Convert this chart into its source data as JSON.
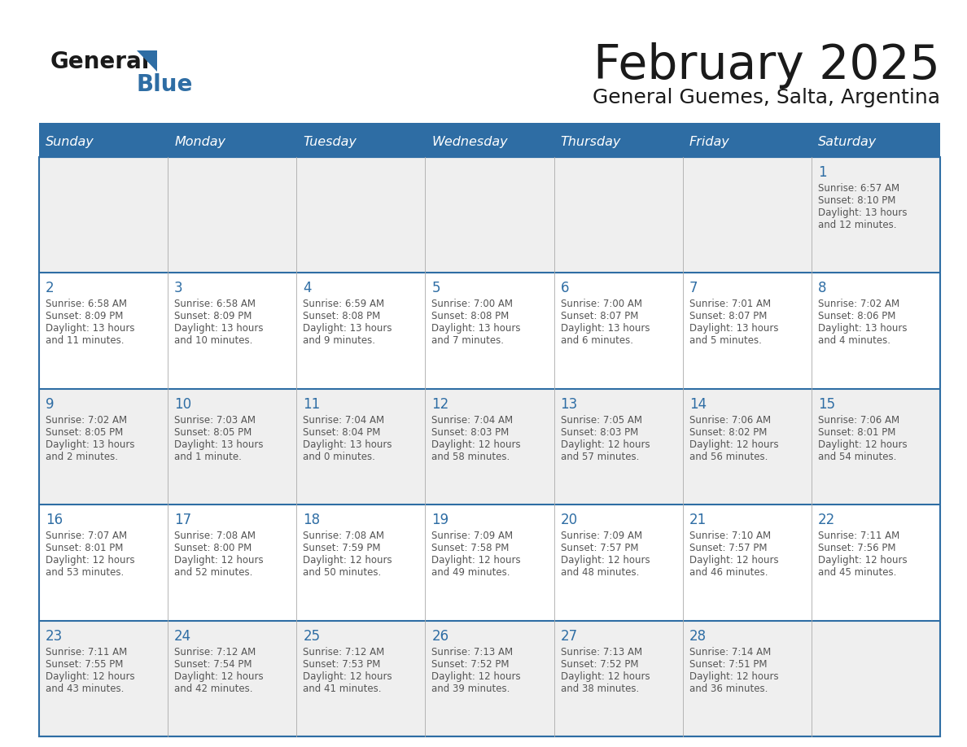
{
  "title": "February 2025",
  "subtitle": "General Guemes, Salta, Argentina",
  "header_bg": "#2E6DA4",
  "header_text": "#FFFFFF",
  "cell_bg_odd": "#EFEFEF",
  "cell_bg_even": "#FFFFFF",
  "border_color": "#2E6DA4",
  "day_num_color": "#2E6DA4",
  "text_color": "#555555",
  "days_of_week": [
    "Sunday",
    "Monday",
    "Tuesday",
    "Wednesday",
    "Thursday",
    "Friday",
    "Saturday"
  ],
  "calendar_data": [
    [
      null,
      null,
      null,
      null,
      null,
      null,
      {
        "day": 1,
        "sunrise": "6:57 AM",
        "sunset": "8:10 PM",
        "daylight": "13 hours",
        "daylight2": "and 12 minutes."
      }
    ],
    [
      {
        "day": 2,
        "sunrise": "6:58 AM",
        "sunset": "8:09 PM",
        "daylight": "13 hours",
        "daylight2": "and 11 minutes."
      },
      {
        "day": 3,
        "sunrise": "6:58 AM",
        "sunset": "8:09 PM",
        "daylight": "13 hours",
        "daylight2": "and 10 minutes."
      },
      {
        "day": 4,
        "sunrise": "6:59 AM",
        "sunset": "8:08 PM",
        "daylight": "13 hours",
        "daylight2": "and 9 minutes."
      },
      {
        "day": 5,
        "sunrise": "7:00 AM",
        "sunset": "8:08 PM",
        "daylight": "13 hours",
        "daylight2": "and 7 minutes."
      },
      {
        "day": 6,
        "sunrise": "7:00 AM",
        "sunset": "8:07 PM",
        "daylight": "13 hours",
        "daylight2": "and 6 minutes."
      },
      {
        "day": 7,
        "sunrise": "7:01 AM",
        "sunset": "8:07 PM",
        "daylight": "13 hours",
        "daylight2": "and 5 minutes."
      },
      {
        "day": 8,
        "sunrise": "7:02 AM",
        "sunset": "8:06 PM",
        "daylight": "13 hours",
        "daylight2": "and 4 minutes."
      }
    ],
    [
      {
        "day": 9,
        "sunrise": "7:02 AM",
        "sunset": "8:05 PM",
        "daylight": "13 hours",
        "daylight2": "and 2 minutes."
      },
      {
        "day": 10,
        "sunrise": "7:03 AM",
        "sunset": "8:05 PM",
        "daylight": "13 hours",
        "daylight2": "and 1 minute."
      },
      {
        "day": 11,
        "sunrise": "7:04 AM",
        "sunset": "8:04 PM",
        "daylight": "13 hours",
        "daylight2": "and 0 minutes."
      },
      {
        "day": 12,
        "sunrise": "7:04 AM",
        "sunset": "8:03 PM",
        "daylight": "12 hours",
        "daylight2": "and 58 minutes."
      },
      {
        "day": 13,
        "sunrise": "7:05 AM",
        "sunset": "8:03 PM",
        "daylight": "12 hours",
        "daylight2": "and 57 minutes."
      },
      {
        "day": 14,
        "sunrise": "7:06 AM",
        "sunset": "8:02 PM",
        "daylight": "12 hours",
        "daylight2": "and 56 minutes."
      },
      {
        "day": 15,
        "sunrise": "7:06 AM",
        "sunset": "8:01 PM",
        "daylight": "12 hours",
        "daylight2": "and 54 minutes."
      }
    ],
    [
      {
        "day": 16,
        "sunrise": "7:07 AM",
        "sunset": "8:01 PM",
        "daylight": "12 hours",
        "daylight2": "and 53 minutes."
      },
      {
        "day": 17,
        "sunrise": "7:08 AM",
        "sunset": "8:00 PM",
        "daylight": "12 hours",
        "daylight2": "and 52 minutes."
      },
      {
        "day": 18,
        "sunrise": "7:08 AM",
        "sunset": "7:59 PM",
        "daylight": "12 hours",
        "daylight2": "and 50 minutes."
      },
      {
        "day": 19,
        "sunrise": "7:09 AM",
        "sunset": "7:58 PM",
        "daylight": "12 hours",
        "daylight2": "and 49 minutes."
      },
      {
        "day": 20,
        "sunrise": "7:09 AM",
        "sunset": "7:57 PM",
        "daylight": "12 hours",
        "daylight2": "and 48 minutes."
      },
      {
        "day": 21,
        "sunrise": "7:10 AM",
        "sunset": "7:57 PM",
        "daylight": "12 hours",
        "daylight2": "and 46 minutes."
      },
      {
        "day": 22,
        "sunrise": "7:11 AM",
        "sunset": "7:56 PM",
        "daylight": "12 hours",
        "daylight2": "and 45 minutes."
      }
    ],
    [
      {
        "day": 23,
        "sunrise": "7:11 AM",
        "sunset": "7:55 PM",
        "daylight": "12 hours",
        "daylight2": "and 43 minutes."
      },
      {
        "day": 24,
        "sunrise": "7:12 AM",
        "sunset": "7:54 PM",
        "daylight": "12 hours",
        "daylight2": "and 42 minutes."
      },
      {
        "day": 25,
        "sunrise": "7:12 AM",
        "sunset": "7:53 PM",
        "daylight": "12 hours",
        "daylight2": "and 41 minutes."
      },
      {
        "day": 26,
        "sunrise": "7:13 AM",
        "sunset": "7:52 PM",
        "daylight": "12 hours",
        "daylight2": "and 39 minutes."
      },
      {
        "day": 27,
        "sunrise": "7:13 AM",
        "sunset": "7:52 PM",
        "daylight": "12 hours",
        "daylight2": "and 38 minutes."
      },
      {
        "day": 28,
        "sunrise": "7:14 AM",
        "sunset": "7:51 PM",
        "daylight": "12 hours",
        "daylight2": "and 36 minutes."
      },
      null
    ]
  ]
}
